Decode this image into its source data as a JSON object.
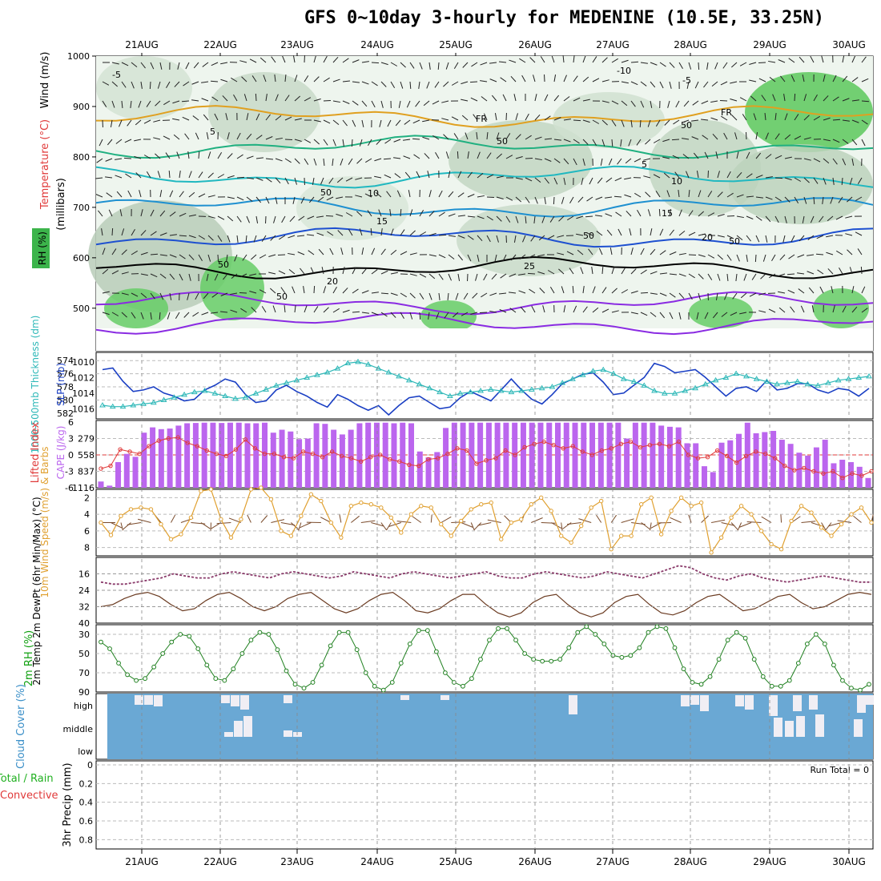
{
  "title": "GFS 0~10day 3-hourly for MEDENINE (10.5E, 33.25N)",
  "dates": [
    "21AUG",
    "22AUG",
    "23AUG",
    "24AUG",
    "25AUG",
    "26AUG",
    "27AUG",
    "28AUG",
    "29AUG",
    "30AUG"
  ],
  "run_total": "Run Total = 0",
  "colors": {
    "rh_green": "#3cb44b",
    "slp": "#1a3fc4",
    "thickness": "#2eb8b8",
    "lifted": "#e03a3a",
    "cape": "#bb66ee",
    "wind": "#e0a030",
    "cloud": "#6aa8d4",
    "temp_hot": "#e04a10"
  },
  "chart_data": [
    {
      "type": "heatmap",
      "name": "profile",
      "ylabel_wind": "Wind (m/s)",
      "ylabel_temp": "Temperature (°C)",
      "ylabel_rh": "RH (%)",
      "ylabel_p": "(millibars)",
      "yticks": [
        "500",
        "600",
        "700",
        "800",
        "900",
        "1000"
      ],
      "isotherms": [
        {
          "label": "-10",
          "level": 470
        },
        {
          "label": "-5",
          "level": 510
        },
        {
          "label": "FR",
          "level": 580
        },
        {
          "label": "5",
          "level": 640
        },
        {
          "label": "10",
          "level": 700
        },
        {
          "label": "15",
          "level": 760
        },
        {
          "label": "20",
          "level": 820
        },
        {
          "label": "25",
          "level": 880
        }
      ],
      "contour_labels": [
        "-5",
        "-10",
        "-5",
        "FR",
        "FR",
        "5",
        "5",
        "10",
        "10",
        "15",
        "15",
        "20",
        "20",
        "25",
        "50",
        "50",
        "50",
        "50",
        "50",
        "50",
        "50"
      ]
    },
    {
      "type": "line",
      "name": "slp_thickness",
      "ylabel_slp": "SLP (mb)",
      "ylabel_thk": "1000-500mb Thickness (dm)",
      "yticks_thk": [
        "574",
        "576",
        "578",
        "580",
        "582"
      ],
      "yticks_slp": [
        "1010",
        "1012",
        "1014",
        "1016"
      ],
      "series": [
        {
          "name": "SLP",
          "values": [
            1011.0,
            1010.8,
            1012.5,
            1013.8,
            1013.6,
            1013.2,
            1014.0,
            1014.4,
            1015.0,
            1014.8,
            1013.6,
            1013.0,
            1012.2,
            1012.6,
            1014.2,
            1015.2,
            1015.0,
            1013.6,
            1013.0,
            1013.8,
            1014.4,
            1015.2,
            1015.8,
            1014.2,
            1014.8,
            1015.6,
            1016.2,
            1015.6,
            1016.8,
            1015.6,
            1014.6,
            1014.4,
            1015.2,
            1016.0,
            1015.8,
            1014.6,
            1013.8,
            1014.4,
            1015.0,
            1013.6,
            1012.2,
            1013.6,
            1014.8,
            1015.4,
            1014.2,
            1012.8,
            1012.2,
            1011.6,
            1011.4,
            1012.6,
            1014.2,
            1014.0,
            1013.0,
            1012.0,
            1010.2,
            1010.6,
            1011.4,
            1011.2,
            1011.0,
            1012.0,
            1013.2,
            1014.4,
            1013.4,
            1013.2,
            1013.8,
            1012.4,
            1013.6,
            1013.4,
            1012.8,
            1012.8,
            1013.6,
            1014.0,
            1013.4,
            1013.6,
            1014.4,
            1013.4
          ]
        },
        {
          "name": "Thickness",
          "values": [
            580.8,
            581.0,
            581.0,
            580.8,
            580.6,
            580.4,
            580.0,
            579.6,
            579.2,
            578.8,
            578.6,
            579.0,
            579.4,
            579.8,
            579.6,
            579.0,
            578.4,
            577.8,
            577.4,
            577.0,
            576.6,
            576.2,
            575.8,
            575.2,
            574.4,
            574.2,
            574.6,
            575.2,
            575.8,
            576.4,
            577.0,
            577.6,
            578.2,
            578.8,
            579.4,
            579.0,
            578.8,
            578.6,
            578.4,
            578.6,
            578.8,
            578.6,
            578.4,
            578.2,
            578.0,
            577.4,
            576.8,
            576.2,
            575.6,
            575.4,
            576.0,
            576.8,
            577.2,
            577.8,
            578.6,
            579.0,
            579.0,
            578.6,
            578.2,
            577.6,
            577.0,
            576.6,
            576.0,
            576.4,
            576.8,
            577.2,
            577.6,
            577.4,
            577.2,
            577.6,
            577.8,
            577.4,
            577.0,
            576.8,
            576.6,
            576.4
          ]
        }
      ]
    },
    {
      "type": "bar",
      "name": "lifted_cape",
      "ylabel_li": "Lifted Index",
      "ylabel_cape": "CAPE (J/kg)",
      "yticks_li": [
        "-6",
        "-3",
        "0",
        "3",
        "6"
      ],
      "yticks_cape": [
        "279",
        "558",
        "837",
        "1116"
      ],
      "series": [
        {
          "name": "CAPE",
          "values": [
            1010,
            1080,
            680,
            540,
            590,
            180,
            90,
            120,
            110,
            60,
            20,
            15,
            10,
            10,
            15,
            10,
            10,
            20,
            20,
            10,
            180,
            130,
            160,
            290,
            280,
            20,
            30,
            130,
            210,
            130,
            20,
            10,
            10,
            10,
            20,
            10,
            20,
            500,
            600,
            510,
            100,
            10,
            10,
            10,
            10,
            10,
            10,
            10,
            10,
            10,
            10,
            10,
            10,
            10,
            10,
            10,
            10,
            10,
            10,
            10,
            10,
            280,
            10,
            10,
            10,
            60,
            80,
            90,
            360,
            360,
            750,
            850,
            350,
            310,
            200,
            10,
            190,
            170,
            150,
            300,
            370,
            520,
            570,
            430,
            300,
            700,
            640,
            680,
            760,
            950
          ]
        },
        {
          "name": "Lifted Index",
          "values": [
            -2.5,
            -2.0,
            1.0,
            0.6,
            0.2,
            1.6,
            2.6,
            3.0,
            3.2,
            2.2,
            1.6,
            0.8,
            0.2,
            -0.2,
            1.0,
            2.8,
            1.2,
            0.2,
            0.2,
            -0.4,
            -0.6,
            0.6,
            0.2,
            -0.4,
            0.6,
            -0.2,
            -0.6,
            -1.2,
            -0.4,
            0.0,
            -0.8,
            -1.2,
            -1.8,
            -2.0,
            -0.8,
            -0.6,
            0.2,
            1.2,
            0.8,
            -1.6,
            -1.0,
            -0.6,
            0.8,
            0.0,
            1.4,
            2.0,
            2.4,
            1.8,
            1.2,
            1.6,
            0.6,
            0.0,
            0.8,
            1.2,
            2.0,
            2.4,
            1.4,
            1.8,
            2.0,
            1.6,
            2.4,
            0.0,
            -0.6,
            -0.4,
            0.8,
            -0.2,
            -1.4,
            -0.2,
            0.6,
            0.2,
            -0.6,
            -2.0,
            -2.8,
            -2.4,
            -3.0,
            -3.4,
            -3.0,
            -4.2,
            -3.4,
            -3.8,
            -3.0
          ]
        }
      ]
    },
    {
      "type": "line",
      "name": "wind10m",
      "ylabel": "10m Wind Speed (m/s) & Barbs",
      "yticks": [
        "2",
        "4",
        "6",
        "8"
      ],
      "series": [
        {
          "name": "Speed",
          "values": [
            5.0,
            6.5,
            4.2,
            3.4,
            3.2,
            3.4,
            5.2,
            7.0,
            6.4,
            4.4,
            1.2,
            1.0,
            4.6,
            6.8,
            4.6,
            1.0,
            0.8,
            2.2,
            6.0,
            6.6,
            4.2,
            1.6,
            2.4,
            5.0,
            6.8,
            3.0,
            2.6,
            2.8,
            3.2,
            4.4,
            6.2,
            4.0,
            3.0,
            3.2,
            5.2,
            6.6,
            4.8,
            3.4,
            2.8,
            2.6,
            7.0,
            5.0,
            4.6,
            2.8,
            2.0,
            3.6,
            6.6,
            7.4,
            5.4,
            3.2,
            2.4,
            8.2,
            6.6,
            6.6,
            2.8,
            2.0,
            6.4,
            3.6,
            2.0,
            3.0,
            2.6,
            8.6,
            6.8,
            4.4,
            3.0,
            4.0,
            6.0,
            7.6,
            8.2,
            4.8,
            3.0,
            3.8,
            5.6,
            6.6,
            5.2,
            4.0,
            3.2,
            5.0
          ]
        }
      ]
    },
    {
      "type": "area",
      "name": "temp2m",
      "ylabel": "2m Temp 2m DewPt (6hr Min/Max) (°C)",
      "yticks": [
        "16",
        "24",
        "32",
        "40"
      ],
      "series": [
        {
          "name": "Temp",
          "values": [
            32,
            31,
            28,
            26,
            25,
            27,
            31,
            34,
            33,
            29,
            26,
            25,
            28,
            32,
            34,
            32,
            28,
            26,
            25,
            29,
            33,
            35,
            33,
            29,
            26,
            25,
            29,
            34,
            35,
            33,
            29,
            26,
            26,
            31,
            35,
            37,
            35,
            30,
            27,
            26,
            31,
            35,
            37,
            35,
            30,
            27,
            26,
            31,
            35,
            36,
            34,
            30,
            27,
            26,
            30,
            34,
            33,
            30,
            27,
            26,
            30,
            33,
            32,
            29,
            26,
            25,
            26
          ]
        },
        {
          "name": "DewPt",
          "values": [
            20,
            21,
            21,
            20,
            19,
            18,
            16,
            17,
            18,
            18,
            16,
            15,
            16,
            17,
            18,
            16,
            15,
            16,
            17,
            18,
            17,
            15,
            16,
            17,
            18,
            16,
            15,
            16,
            17,
            18,
            17,
            16,
            15,
            17,
            18,
            18,
            16,
            15,
            16,
            17,
            18,
            17,
            15,
            16,
            17,
            18,
            16,
            14,
            12,
            13,
            16,
            18,
            19,
            17,
            16,
            18,
            19,
            20,
            19,
            18,
            17,
            18,
            19,
            20,
            20
          ]
        }
      ]
    },
    {
      "type": "area",
      "name": "rh2m",
      "ylabel": "2m RH (%)",
      "yticks": [
        "30",
        "50",
        "70",
        "90"
      ],
      "series": [
        {
          "name": "RH",
          "values": [
            38,
            45,
            60,
            72,
            78,
            76,
            64,
            50,
            38,
            30,
            32,
            45,
            62,
            76,
            78,
            66,
            50,
            36,
            28,
            30,
            46,
            68,
            82,
            86,
            80,
            62,
            42,
            28,
            28,
            46,
            70,
            84,
            88,
            80,
            60,
            40,
            26,
            26,
            48,
            70,
            80,
            84,
            76,
            56,
            36,
            24,
            24,
            36,
            50,
            56,
            58,
            58,
            56,
            44,
            28,
            22,
            30,
            40,
            52,
            54,
            52,
            44,
            28,
            22,
            24,
            44,
            66,
            80,
            82,
            74,
            56,
            36,
            28,
            34,
            56,
            74,
            84,
            84,
            78,
            60,
            40,
            30,
            40,
            62,
            78,
            86,
            88,
            82
          ]
        }
      ]
    },
    {
      "type": "bar",
      "name": "cloud_cover",
      "ylabel": "Cloud Cover (%)",
      "levels": [
        "high",
        "middle",
        "low"
      ]
    },
    {
      "type": "bar",
      "name": "precip",
      "ylabel": "3hr Precip (mm)",
      "ylabel_extra": "Total / Rain Convective",
      "yticks": [
        "0",
        "0.2",
        "0.4",
        "0.6",
        "0.8"
      ],
      "values": [
        0,
        0,
        0,
        0,
        0,
        0,
        0,
        0,
        0,
        0
      ]
    }
  ]
}
